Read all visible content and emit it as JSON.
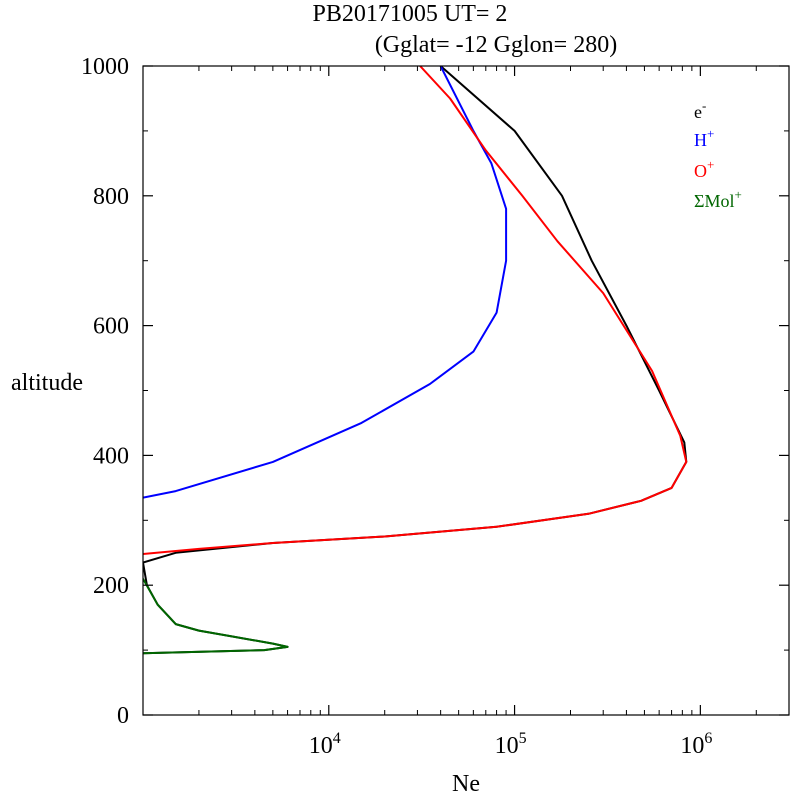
{
  "chart_data": {
    "type": "line",
    "title_line1": "PB20171005   UT=  2",
    "title_line2": "(Gglat= -12   Gglon=  280)",
    "xlabel": "Ne",
    "ylabel": "altitude",
    "x_scale": "log",
    "xlim": [
      1000,
      3000000
    ],
    "ylim": [
      0,
      1000
    ],
    "x_ticks": [
      {
        "value": 10000,
        "base": "10",
        "exp": "4"
      },
      {
        "value": 100000,
        "base": "10",
        "exp": "5"
      },
      {
        "value": 1000000,
        "base": "10",
        "exp": "6"
      }
    ],
    "y_ticks": [
      0,
      200,
      400,
      600,
      800,
      1000
    ],
    "y_tick_labels": [
      "0",
      "200",
      "400",
      "600",
      "800",
      "1000"
    ],
    "grid": false,
    "legend_position": "top-right",
    "series": [
      {
        "name": "e-",
        "label_base": "e",
        "label_sup": "-",
        "color": "#000000",
        "points": [
          [
            40000,
            1000
          ],
          [
            100000,
            900
          ],
          [
            180000,
            800
          ],
          [
            260000,
            700
          ],
          [
            400000,
            600
          ],
          [
            600000,
            500
          ],
          [
            820000,
            420
          ],
          [
            840000,
            390
          ],
          [
            700000,
            350
          ],
          [
            480000,
            330
          ],
          [
            250000,
            310
          ],
          [
            80000,
            290
          ],
          [
            20000,
            275
          ],
          [
            5000,
            265
          ],
          [
            1500,
            250
          ],
          [
            1000,
            235
          ],
          [
            1050,
            200
          ],
          [
            1200,
            170
          ],
          [
            1500,
            140
          ],
          [
            2000,
            130
          ],
          [
            5000,
            110
          ],
          [
            6000,
            105
          ],
          [
            4500,
            100
          ],
          [
            1000,
            95
          ]
        ]
      },
      {
        "name": "H+",
        "label_base": "H",
        "label_sup": "+",
        "color": "#0000ff",
        "points": [
          [
            40000,
            1000
          ],
          [
            60000,
            900
          ],
          [
            75000,
            850
          ],
          [
            90000,
            780
          ],
          [
            90000,
            700
          ],
          [
            80000,
            620
          ],
          [
            60000,
            560
          ],
          [
            35000,
            510
          ],
          [
            15000,
            450
          ],
          [
            5000,
            390
          ],
          [
            1500,
            345
          ],
          [
            1000,
            335
          ]
        ]
      },
      {
        "name": "O+",
        "label_base": "O",
        "label_sup": "+",
        "color": "#ff0000",
        "points": [
          [
            31000,
            1000
          ],
          [
            45000,
            950
          ],
          [
            70000,
            870
          ],
          [
            110000,
            800
          ],
          [
            170000,
            730
          ],
          [
            300000,
            650
          ],
          [
            550000,
            530
          ],
          [
            780000,
            430
          ],
          [
            840000,
            390
          ],
          [
            700000,
            350
          ],
          [
            480000,
            330
          ],
          [
            250000,
            310
          ],
          [
            80000,
            290
          ],
          [
            20000,
            275
          ],
          [
            5000,
            265
          ],
          [
            2000,
            256
          ],
          [
            1000,
            248
          ]
        ]
      },
      {
        "name": "ΣMol+",
        "label_base": "ΣMol",
        "label_sup": "+",
        "color": "#006600",
        "points": [
          [
            1000,
            210
          ],
          [
            1200,
            170
          ],
          [
            1500,
            140
          ],
          [
            2000,
            130
          ],
          [
            5000,
            110
          ],
          [
            6000,
            105
          ],
          [
            4500,
            100
          ],
          [
            1000,
            95
          ]
        ]
      }
    ]
  }
}
